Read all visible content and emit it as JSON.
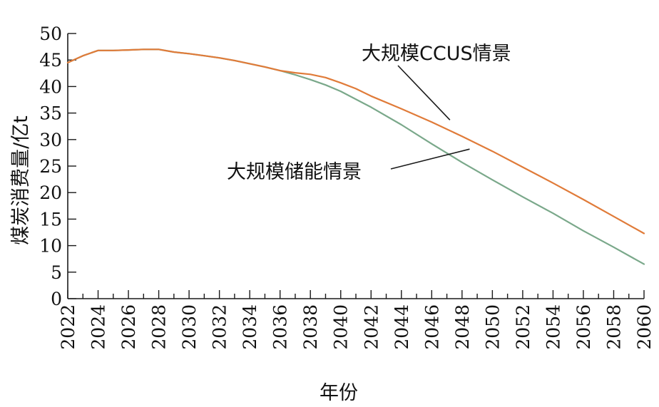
{
  "chart_data": {
    "type": "line",
    "xlabel": "年份",
    "ylabel": "煤炭消费量/亿t",
    "xlim": [
      2022,
      2060
    ],
    "ylim": [
      0,
      50
    ],
    "x_ticks": [
      2022,
      2024,
      2026,
      2028,
      2030,
      2032,
      2034,
      2036,
      2038,
      2040,
      2042,
      2044,
      2046,
      2048,
      2050,
      2052,
      2054,
      2056,
      2058,
      2060
    ],
    "x_tick_labels": [
      "2022",
      "2024",
      "2026",
      "2028",
      "2030",
      "2032",
      "2034",
      "2036",
      "2038",
      "2040",
      "2042",
      "2044",
      "2046",
      "2048",
      "2050",
      "2052",
      "2054",
      "2056",
      "2058",
      "2060"
    ],
    "y_ticks": [
      0,
      5,
      10,
      15,
      20,
      25,
      30,
      35,
      40,
      45,
      50
    ],
    "y_tick_labels": [
      "0",
      "5",
      "10",
      "15",
      "20",
      "25",
      "30",
      "35",
      "40",
      "45",
      "50"
    ],
    "grid": false,
    "series": [
      {
        "name": "大规模CCUS情景",
        "color": "#e07b39",
        "x": [
          2022,
          2023,
          2024,
          2025,
          2026,
          2027,
          2028,
          2029,
          2030,
          2031,
          2032,
          2033,
          2034,
          2035,
          2036,
          2037,
          2038,
          2039,
          2040,
          2041,
          2042,
          2044,
          2046,
          2048,
          2050,
          2052,
          2054,
          2056,
          2058,
          2060
        ],
        "values": [
          44.5,
          45.8,
          46.8,
          46.8,
          46.9,
          47.0,
          47.0,
          46.5,
          46.2,
          45.8,
          45.4,
          44.9,
          44.3,
          43.7,
          43.0,
          42.6,
          42.3,
          41.7,
          40.7,
          39.6,
          38.2,
          35.8,
          33.3,
          30.6,
          27.8,
          24.8,
          21.8,
          18.7,
          15.5,
          12.3
        ]
      },
      {
        "name": "大规模储能情景",
        "color": "#7aa88a",
        "x": [
          2022,
          2023,
          2024,
          2025,
          2026,
          2027,
          2028,
          2029,
          2030,
          2031,
          2032,
          2033,
          2034,
          2035,
          2036,
          2037,
          2038,
          2039,
          2040,
          2042,
          2044,
          2046,
          2048,
          2050,
          2052,
          2054,
          2056,
          2058,
          2060
        ],
        "values": [
          44.5,
          45.8,
          46.8,
          46.8,
          46.9,
          47.0,
          47.0,
          46.5,
          46.2,
          45.8,
          45.4,
          44.9,
          44.3,
          43.7,
          43.0,
          42.2,
          41.3,
          40.3,
          39.1,
          36.1,
          32.8,
          29.2,
          25.7,
          22.4,
          19.2,
          16.1,
          12.8,
          9.7,
          6.5
        ]
      }
    ],
    "annotations": [
      {
        "text": "大规模CCUS情景",
        "series": 0,
        "x": 2047.2,
        "y": 33.7
      },
      {
        "text": "大规模储能情景",
        "series": 1,
        "x": 2048.5,
        "y": 28.2
      }
    ]
  }
}
